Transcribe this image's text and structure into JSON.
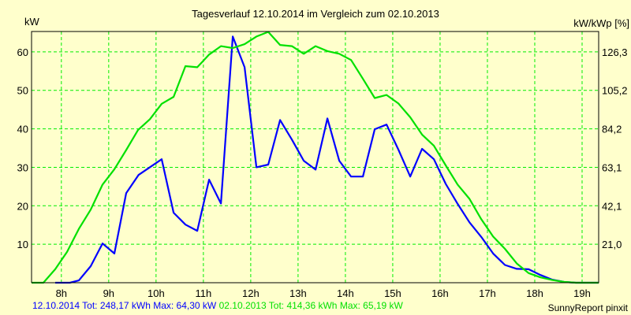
{
  "chart_data": {
    "type": "line",
    "title": "Tagesverlauf 12.10.2014 im Vergleich zum 02.10.2013",
    "ylabel": "kW",
    "ylabel_right": "kW/kWp [%]",
    "xlim": [
      7.37,
      19.35
    ],
    "ylim": [
      0,
      65.3
    ],
    "grid": true,
    "x_ticks": [
      {
        "v": 8,
        "label": "8h"
      },
      {
        "v": 9,
        "label": "9h"
      },
      {
        "v": 10,
        "label": "10h"
      },
      {
        "v": 11,
        "label": "11h"
      },
      {
        "v": 12,
        "label": "12h"
      },
      {
        "v": 13,
        "label": "13h"
      },
      {
        "v": 14,
        "label": "14h"
      },
      {
        "v": 15,
        "label": "15h"
      },
      {
        "v": 16,
        "label": "16h"
      },
      {
        "v": 17,
        "label": "17h"
      },
      {
        "v": 18,
        "label": "18h"
      },
      {
        "v": 19,
        "label": "19h"
      }
    ],
    "y_ticks": [
      {
        "v": 10,
        "label": "10"
      },
      {
        "v": 20,
        "label": "20"
      },
      {
        "v": 30,
        "label": "30"
      },
      {
        "v": 40,
        "label": "40"
      },
      {
        "v": 50,
        "label": "50"
      },
      {
        "v": 60,
        "label": "60"
      }
    ],
    "y_ticks_right": [
      {
        "v": 10,
        "label": "21,0"
      },
      {
        "v": 20,
        "label": "42,1"
      },
      {
        "v": 30,
        "label": "63,1"
      },
      {
        "v": 40,
        "label": "84,2"
      },
      {
        "v": 50,
        "label": "105,2"
      },
      {
        "v": 60,
        "label": "126,3"
      }
    ],
    "series": [
      {
        "name": "12.10.2014",
        "color": "#0000ff",
        "x": [
          7.87,
          8.18,
          8.37,
          8.62,
          8.87,
          9.12,
          9.37,
          9.63,
          10.12,
          10.37,
          10.62,
          10.87,
          11.12,
          11.37,
          11.62,
          11.87,
          12.12,
          12.37,
          12.62,
          12.87,
          13.12,
          13.37,
          13.62,
          13.87,
          14.12,
          14.37,
          14.62,
          14.87,
          15.12,
          15.37,
          15.62,
          15.87,
          16.12,
          16.37,
          16.62,
          16.87,
          17.12,
          17.37,
          17.62,
          17.87,
          18.12,
          18.37,
          18.62,
          18.87,
          19.35
        ],
        "y": [
          0,
          0,
          0.6,
          4.3,
          10.2,
          7.6,
          23.3,
          28.0,
          32.1,
          18.2,
          15.1,
          13.5,
          26.8,
          20.6,
          64.0,
          56.0,
          30.0,
          30.7,
          42.3,
          37.2,
          31.7,
          29.4,
          42.7,
          31.7,
          27.6,
          27.6,
          39.9,
          41.1,
          34.6,
          27.6,
          34.8,
          32.1,
          25.7,
          20.5,
          15.7,
          11.9,
          7.6,
          4.6,
          3.6,
          3.5,
          2.0,
          0.8,
          0.2,
          0,
          0
        ]
      },
      {
        "name": "02.10.2013",
        "color": "#00e000",
        "x": [
          7.37,
          7.62,
          7.87,
          8.12,
          8.37,
          8.62,
          8.87,
          9.12,
          9.37,
          9.62,
          9.87,
          10.12,
          10.37,
          10.62,
          10.87,
          11.12,
          11.37,
          11.62,
          11.87,
          12.12,
          12.37,
          12.62,
          12.87,
          13.12,
          13.37,
          13.62,
          13.87,
          14.12,
          14.37,
          14.62,
          14.87,
          15.12,
          15.37,
          15.62,
          15.87,
          16.12,
          16.37,
          16.62,
          16.87,
          17.12,
          17.37,
          17.62,
          17.87,
          18.12,
          18.37,
          18.62,
          18.87,
          19.35
        ],
        "y": [
          0,
          0,
          3.5,
          8,
          14,
          19,
          25.5,
          29.5,
          34.5,
          39.7,
          42.5,
          46.5,
          48.3,
          56.3,
          56.0,
          59.3,
          61.5,
          61,
          62,
          64,
          65.2,
          61.8,
          61.5,
          59.5,
          61.5,
          60.2,
          59.5,
          57.9,
          53,
          48.0,
          48.8,
          46.6,
          43,
          38.5,
          35.6,
          30.5,
          25.5,
          21.8,
          16.5,
          12,
          8.8,
          5,
          2.5,
          1.4,
          0.7,
          0.2,
          0,
          0
        ]
      }
    ]
  },
  "footer": {
    "s1_text": "12.10.2014 Tot: 248,17 kWh Max: 64,30 kW",
    "s2_text": "02.10.2013 Tot: 414,36 kWh Max: 65,19 kW",
    "credit": "SunnyReport pinxit"
  }
}
